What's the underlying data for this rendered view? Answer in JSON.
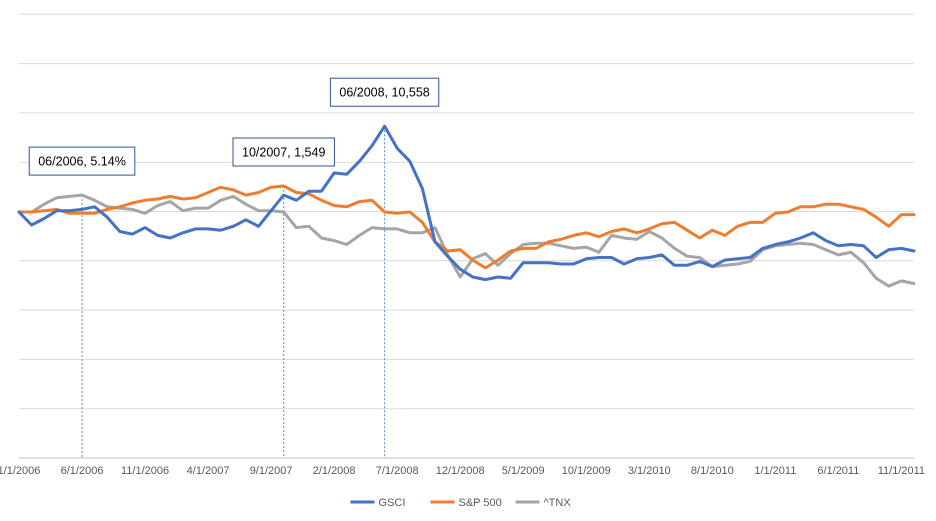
{
  "chart_data": {
    "type": "line",
    "title": "",
    "xlabel": "",
    "ylabel": "",
    "grid": true,
    "legend_position": "bottom",
    "x_tick_labels": [
      "1/1/2006",
      "6/1/2006",
      "11/1/2006",
      "4/1/2007",
      "9/1/2007",
      "2/1/2008",
      "7/1/2008",
      "12/1/2008",
      "5/1/2009",
      "10/1/2009",
      "3/1/2010",
      "8/1/2010",
      "1/1/2011",
      "6/1/2011",
      "11/1/2011"
    ],
    "y_tick_labels": [],
    "y_gridline_count": 9,
    "x_start": "2006-01",
    "x_end": "2011-12",
    "series": [
      {
        "name": "GSCI",
        "color": "#4472c4",
        "values": [
          100,
          90,
          95,
          101,
          101,
          102,
          104,
          96,
          85,
          83,
          88,
          82,
          80,
          84,
          87,
          87,
          86,
          89,
          94,
          89,
          101,
          113,
          109,
          116,
          116,
          130,
          129,
          139,
          151,
          166,
          149,
          139,
          118,
          77,
          66,
          56,
          50,
          48,
          50,
          49,
          61,
          61,
          61,
          60,
          60,
          64,
          65,
          65,
          60,
          64,
          65,
          67,
          59,
          59,
          62,
          58,
          63,
          64,
          65,
          72,
          75,
          77,
          80,
          84,
          78,
          74,
          75,
          74,
          65,
          71,
          72,
          70
        ]
      },
      {
        "name": "S&P 500",
        "color": "#ed7d31",
        "values": [
          100,
          100,
          101,
          102,
          99,
          99,
          99,
          102,
          104,
          107,
          109,
          110,
          112,
          110,
          111,
          115,
          119,
          117,
          113,
          115,
          119,
          120,
          115,
          114,
          109,
          105,
          104,
          108,
          109,
          100,
          99,
          100,
          92,
          77,
          70,
          71,
          63,
          57,
          63,
          70,
          72,
          72,
          77,
          79,
          82,
          84,
          81,
          85,
          87,
          84,
          87,
          91,
          92,
          86,
          80,
          86,
          82,
          89,
          92,
          92,
          99,
          100,
          104,
          104,
          106,
          106,
          104,
          102,
          96,
          89,
          98,
          98
        ]
      },
      {
        "name": "^TNX",
        "color": "#a5a5a5",
        "values": [
          100,
          100,
          106,
          111,
          112,
          113,
          109,
          104,
          103,
          102,
          99,
          105,
          108,
          101,
          103,
          103,
          109,
          112,
          106,
          101,
          101,
          100,
          88,
          89,
          80,
          78,
          75,
          82,
          88,
          87,
          87,
          84,
          84,
          88,
          67,
          50,
          64,
          68,
          59,
          68,
          75,
          76,
          76,
          74,
          72,
          73,
          69,
          82,
          80,
          79,
          85,
          80,
          72,
          66,
          65,
          58,
          59,
          60,
          62,
          71,
          74,
          75,
          76,
          75,
          71,
          67,
          69,
          61,
          49,
          43,
          47,
          45
        ]
      }
    ],
    "annotations": [
      {
        "text": "06/2006, 5.14%",
        "series": "^TNX",
        "x_index": 5
      },
      {
        "text": "10/2007, 1,549",
        "series": "S&P 500",
        "x_index": 21
      },
      {
        "text": "06/2008, 10,558",
        "series": "GSCI",
        "x_index": 29
      }
    ]
  }
}
